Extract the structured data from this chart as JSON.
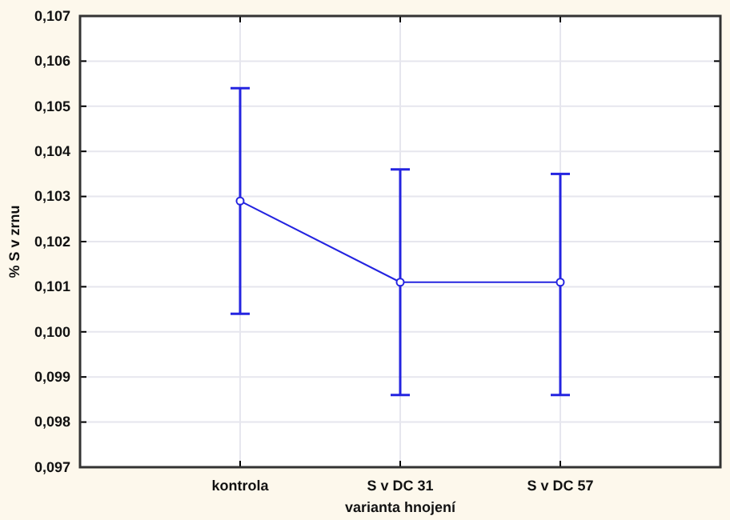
{
  "chart_data": {
    "type": "line",
    "xlabel": "varianta hnojení",
    "ylabel": "% S v zrnu",
    "categories": [
      "kontrola",
      "S v DC 31",
      "S v DC 57"
    ],
    "series": [
      {
        "color": "#2424e0",
        "values": [
          0.1029,
          0.1011,
          0.1011
        ],
        "errors": [
          [
            0.1004,
            0.1054
          ],
          [
            0.0986,
            0.1036
          ],
          [
            0.0986,
            0.1035
          ]
        ]
      }
    ],
    "ylim": [
      0.097,
      0.107
    ],
    "yticks": [
      {
        "value": 0.097,
        "label": "0,097"
      },
      {
        "value": 0.098,
        "label": "0,098"
      },
      {
        "value": 0.099,
        "label": "0,099"
      },
      {
        "value": 0.1,
        "label": "0,100"
      },
      {
        "value": 0.101,
        "label": "0,101"
      },
      {
        "value": 0.102,
        "label": "0,102"
      },
      {
        "value": 0.103,
        "label": "0,103"
      },
      {
        "value": 0.104,
        "label": "0,104"
      },
      {
        "value": 0.105,
        "label": "0,105"
      },
      {
        "value": 0.106,
        "label": "0,106"
      },
      {
        "value": 0.107,
        "label": "0,107"
      }
    ],
    "grid": true,
    "marker": "circle",
    "line_style": "solid"
  }
}
